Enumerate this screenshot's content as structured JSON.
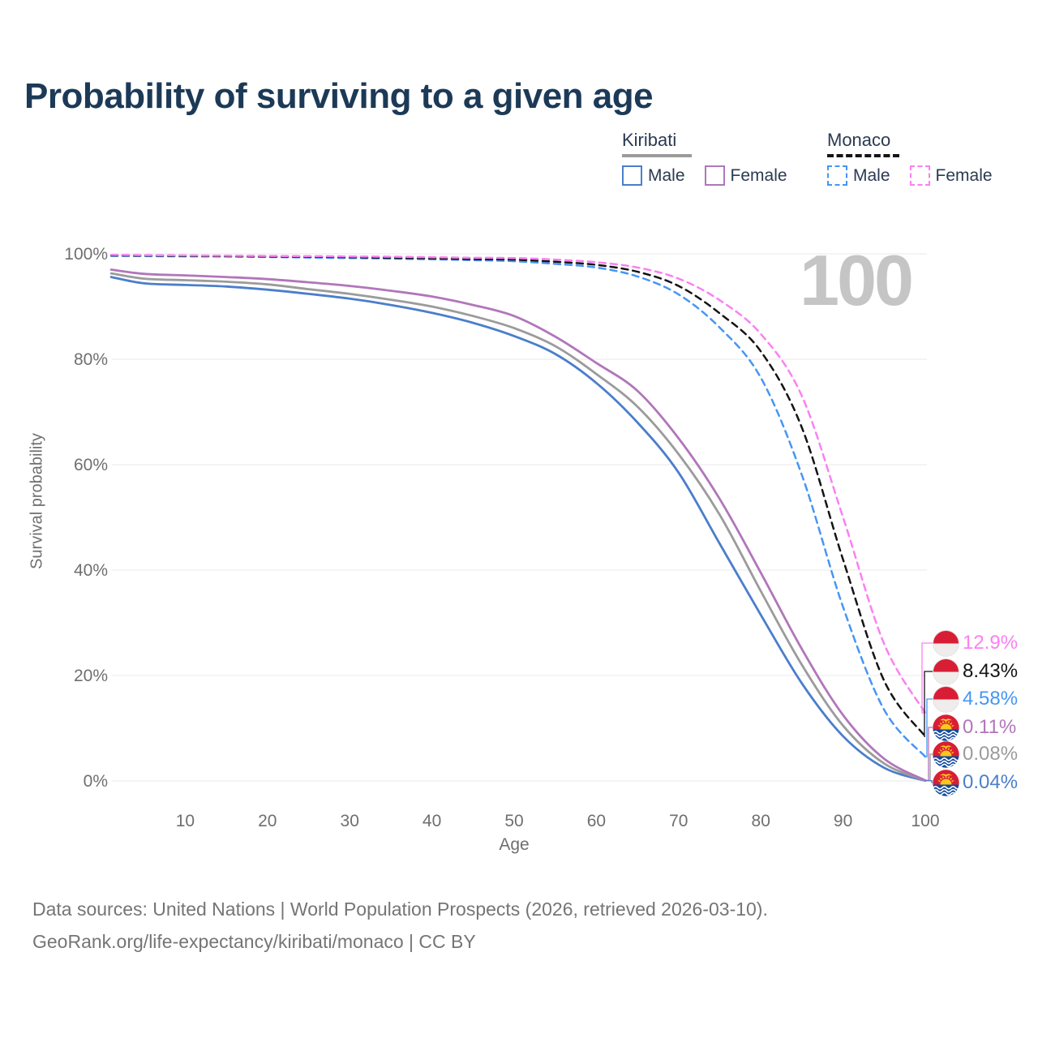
{
  "title": "Probability of surviving to a given age",
  "watermark": "100",
  "legend": {
    "groups": [
      {
        "country": "Kiribati",
        "line_style": "solid",
        "underline_color": "#9b9b9b",
        "items": [
          {
            "label": "Male",
            "color": "#4b7ecb",
            "dashed": false
          },
          {
            "label": "Female",
            "color": "#b176ba",
            "dashed": false
          }
        ]
      },
      {
        "country": "Monaco",
        "line_style": "dashed",
        "underline_color": "#141414",
        "items": [
          {
            "label": "Male",
            "color": "#4596f5",
            "dashed": true
          },
          {
            "label": "Female",
            "color": "#fb80f2",
            "dashed": true
          }
        ]
      }
    ]
  },
  "chart_data": {
    "type": "line",
    "title": "Probability of surviving to a given age",
    "xlabel": "Age",
    "ylabel": "Survival probability",
    "xlim": [
      1,
      100
    ],
    "ylim": [
      0,
      100
    ],
    "grid": true,
    "legend_position": "top-right",
    "highlighted_x": 100,
    "x": [
      1,
      5,
      10,
      15,
      20,
      25,
      30,
      35,
      40,
      45,
      50,
      55,
      60,
      65,
      70,
      75,
      80,
      85,
      90,
      95,
      100
    ],
    "x_ticks": [
      {
        "v": 10,
        "label": "10"
      },
      {
        "v": 20,
        "label": "20"
      },
      {
        "v": 30,
        "label": "30"
      },
      {
        "v": 40,
        "label": "40"
      },
      {
        "v": 50,
        "label": "50"
      },
      {
        "v": 60,
        "label": "60"
      },
      {
        "v": 70,
        "label": "70"
      },
      {
        "v": 80,
        "label": "80"
      },
      {
        "v": 90,
        "label": "90"
      },
      {
        "v": 100,
        "label": "100"
      }
    ],
    "y_ticks": [
      {
        "v": 0,
        "label": "0%"
      },
      {
        "v": 20,
        "label": "20%"
      },
      {
        "v": 40,
        "label": "40%"
      },
      {
        "v": 60,
        "label": "60%"
      },
      {
        "v": 80,
        "label": "80%"
      },
      {
        "v": 100,
        "label": "100%"
      }
    ],
    "series": [
      {
        "key": "monaco-female",
        "name": "Monaco Female",
        "country": "Monaco",
        "sex": "Female",
        "color": "#fb80f2",
        "dashed": true,
        "flag": "mc",
        "end_label": "12.9%",
        "values": [
          99.8,
          99.75,
          99.7,
          99.65,
          99.6,
          99.55,
          99.5,
          99.45,
          99.35,
          99.25,
          99.2,
          98.9,
          98.4,
          97.4,
          95.3,
          91.2,
          84.8,
          73.0,
          50.0,
          26.0,
          12.9
        ]
      },
      {
        "key": "monaco-total",
        "name": "Monaco",
        "country": "Monaco",
        "sex": "Both",
        "color": "#141414",
        "dashed": true,
        "flag": "mc",
        "end_label": "8.43%",
        "values": [
          99.7,
          99.67,
          99.62,
          99.57,
          99.5,
          99.45,
          99.35,
          99.25,
          99.15,
          99.0,
          98.9,
          98.5,
          97.9,
          96.6,
          93.9,
          88.7,
          81.5,
          67.0,
          42.0,
          19.0,
          8.43
        ]
      },
      {
        "key": "monaco-male",
        "name": "Monaco Male",
        "country": "Monaco",
        "sex": "Male",
        "color": "#4596f5",
        "dashed": true,
        "flag": "mc",
        "end_label": "4.58%",
        "values": [
          99.6,
          99.57,
          99.52,
          99.47,
          99.4,
          99.3,
          99.2,
          99.1,
          98.95,
          98.8,
          98.6,
          98.1,
          97.4,
          95.7,
          92.3,
          86.0,
          76.5,
          58.0,
          33.0,
          13.5,
          4.58
        ]
      },
      {
        "key": "kiribati-female",
        "name": "Kiribati Female",
        "country": "Kiribati",
        "sex": "Female",
        "color": "#b176ba",
        "dashed": false,
        "flag": "ki",
        "end_label": "0.11%",
        "values": [
          97.0,
          96.2,
          95.9,
          95.6,
          95.2,
          94.6,
          93.9,
          93.0,
          91.9,
          90.3,
          88.2,
          84.3,
          79.3,
          74.0,
          65.0,
          53.5,
          39.5,
          25.0,
          12.5,
          4.2,
          0.11
        ]
      },
      {
        "key": "kiribati-total",
        "name": "Kiribati",
        "country": "Kiribati",
        "sex": "Both",
        "color": "#9b9b9b",
        "dashed": false,
        "flag": "ki",
        "end_label": "0.08%",
        "values": [
          96.3,
          95.3,
          95.0,
          94.7,
          94.2,
          93.3,
          92.4,
          91.3,
          90.0,
          88.2,
          85.9,
          82.5,
          77.2,
          71.0,
          62.0,
          50.5,
          36.0,
          22.0,
          10.5,
          3.3,
          0.08
        ]
      },
      {
        "key": "kiribati-male",
        "name": "Kiribati Male",
        "country": "Kiribati",
        "sex": "Male",
        "color": "#4b7ecb",
        "dashed": false,
        "flag": "ki",
        "end_label": "0.04%",
        "values": [
          95.6,
          94.4,
          94.1,
          93.8,
          93.2,
          92.4,
          91.5,
          90.3,
          88.8,
          86.9,
          84.4,
          81.0,
          75.5,
          68.0,
          58.5,
          45.0,
          31.5,
          18.5,
          8.5,
          2.5,
          0.04
        ]
      }
    ]
  },
  "footer": {
    "line1": "Data sources: United Nations | World Population Prospects (2026, retrieved 2026-03-10).",
    "line2": "GeoRank.org/life-expectancy/kiribati/monaco | CC BY"
  }
}
